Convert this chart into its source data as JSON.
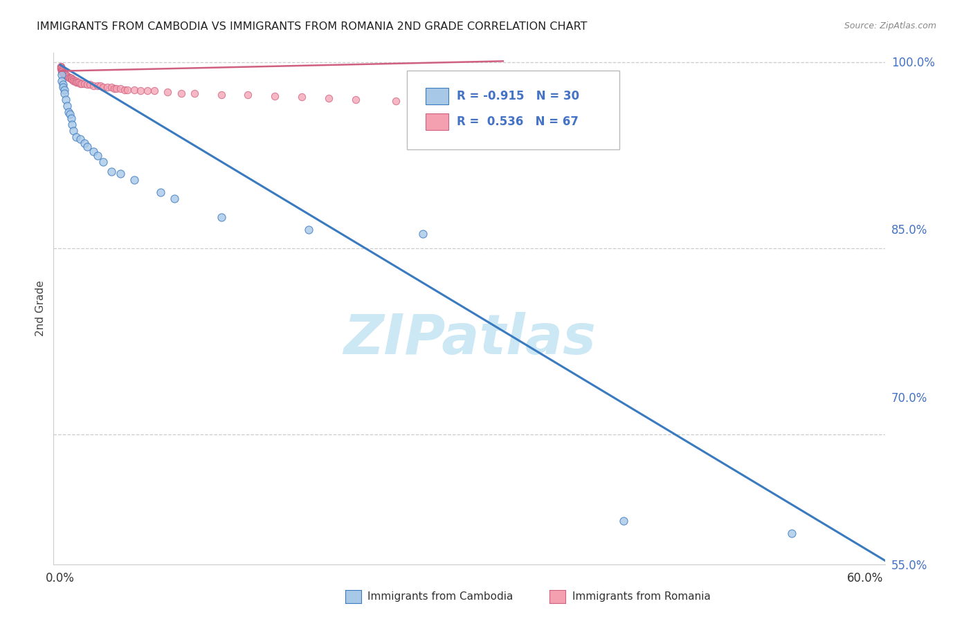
{
  "title": "IMMIGRANTS FROM CAMBODIA VS IMMIGRANTS FROM ROMANIA 2ND GRADE CORRELATION CHART",
  "source": "Source: ZipAtlas.com",
  "ylabel": "2nd Grade",
  "legend_label1": "Immigrants from Cambodia",
  "legend_label2": "Immigrants from Romania",
  "R1": -0.915,
  "N1": 30,
  "R2": 0.536,
  "N2": 67,
  "color1": "#a8c8e8",
  "color2": "#f4a0b0",
  "line_color1": "#3a7abf",
  "line_color2": "#d06080",
  "xlim": [
    -0.005,
    0.615
  ],
  "ylim": [
    0.595,
    1.008
  ],
  "xtick_vals": [
    0.0,
    0.1,
    0.2,
    0.3,
    0.4,
    0.5,
    0.6
  ],
  "xtick_labels": [
    "0.0%",
    "",
    "",
    "",
    "",
    "",
    "60.0%"
  ],
  "yticks_right": [
    1.0,
    0.85,
    0.7,
    0.55
  ],
  "ytick_labels_right": [
    "100.0%",
    "85.0%",
    "70.0%",
    "55.0%"
  ],
  "watermark": "ZIPatlas",
  "watermark_color": "#cde8f5",
  "cambodia_x": [
    0.001,
    0.001,
    0.002,
    0.002,
    0.003,
    0.003,
    0.004,
    0.005,
    0.006,
    0.007,
    0.008,
    0.009,
    0.01,
    0.012,
    0.015,
    0.018,
    0.02,
    0.025,
    0.028,
    0.032,
    0.038,
    0.045,
    0.055,
    0.075,
    0.085,
    0.12,
    0.185,
    0.27,
    0.42,
    0.545
  ],
  "cambodia_y": [
    0.99,
    0.985,
    0.982,
    0.98,
    0.978,
    0.975,
    0.97,
    0.965,
    0.96,
    0.958,
    0.955,
    0.95,
    0.945,
    0.94,
    0.938,
    0.935,
    0.932,
    0.928,
    0.925,
    0.92,
    0.912,
    0.91,
    0.905,
    0.895,
    0.89,
    0.875,
    0.865,
    0.862,
    0.63,
    0.62
  ],
  "romania_x": [
    0.0003,
    0.0004,
    0.0005,
    0.0006,
    0.0007,
    0.0008,
    0.001,
    0.001,
    0.0012,
    0.0015,
    0.0018,
    0.002,
    0.002,
    0.0025,
    0.003,
    0.003,
    0.004,
    0.004,
    0.005,
    0.005,
    0.006,
    0.007,
    0.007,
    0.008,
    0.008,
    0.009,
    0.009,
    0.01,
    0.01,
    0.011,
    0.012,
    0.012,
    0.013,
    0.014,
    0.015,
    0.016,
    0.018,
    0.02,
    0.022,
    0.025,
    0.028,
    0.03,
    0.032,
    0.035,
    0.038,
    0.04,
    0.042,
    0.045,
    0.048,
    0.05,
    0.055,
    0.06,
    0.065,
    0.07,
    0.08,
    0.09,
    0.1,
    0.12,
    0.14,
    0.16,
    0.18,
    0.2,
    0.22,
    0.25,
    0.28,
    0.3,
    0.33
  ],
  "romania_y": [
    0.997,
    0.996,
    0.996,
    0.995,
    0.995,
    0.994,
    0.994,
    0.993,
    0.993,
    0.993,
    0.992,
    0.992,
    0.991,
    0.991,
    0.991,
    0.99,
    0.99,
    0.989,
    0.989,
    0.989,
    0.988,
    0.988,
    0.987,
    0.987,
    0.987,
    0.986,
    0.986,
    0.986,
    0.985,
    0.985,
    0.985,
    0.984,
    0.984,
    0.984,
    0.983,
    0.983,
    0.983,
    0.982,
    0.982,
    0.981,
    0.981,
    0.981,
    0.98,
    0.98,
    0.98,
    0.979,
    0.979,
    0.979,
    0.978,
    0.978,
    0.978,
    0.977,
    0.977,
    0.977,
    0.976,
    0.975,
    0.975,
    0.974,
    0.974,
    0.973,
    0.972,
    0.971,
    0.97,
    0.969,
    0.968,
    0.967,
    0.966
  ],
  "blue_line_x": [
    0.0,
    0.615
  ],
  "blue_line_y": [
    0.998,
    0.598
  ],
  "pink_line_x": [
    0.0,
    0.33
  ],
  "pink_line_y": [
    0.993,
    1.001
  ]
}
